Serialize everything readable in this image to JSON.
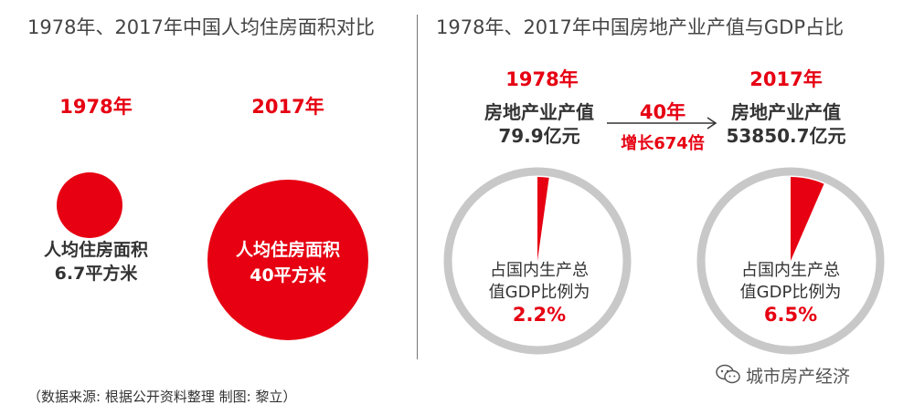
{
  "left_panel": {
    "title": "1978年、2017年中国人均住房面积对比",
    "items": [
      {
        "year": "1978年",
        "label_line1": "人均住房面积",
        "label_line2": "6.7平方米"
      },
      {
        "year": "2017年",
        "label_line1": "人均住房面积",
        "label_line2": "40平方米"
      }
    ]
  },
  "right_panel": {
    "title": "1978年、2017年中国房地产业产值与GDP占比",
    "items": [
      {
        "year": "1978年",
        "label_line1": "房地产业产值",
        "label_line2": "79.9亿元",
        "share_line1": "占国内生产总",
        "share_line2": "值GDP比例为",
        "share_value": "2.2%"
      },
      {
        "year": "2017年",
        "label_line1": "房地产业产值",
        "label_line2": "53850.7亿元",
        "share_line1": "占国内生产总",
        "share_line2": "值GDP比例为",
        "share_value": "6.5%"
      }
    ],
    "arrow_top": "40年",
    "arrow_bottom": "增长674倍"
  },
  "source_note": "（数据来源: 根据公开资料整理   制图: 黎立）",
  "watermark": {
    "text": "城市房产经济",
    "icon": "wechat-icon"
  },
  "colors": {
    "accent": "#e60012",
    "ring": "#c8c8c8",
    "text": "#333333"
  },
  "chart_data": [
    {
      "type": "bubble",
      "title": "1978年、2017年中国人均住房面积对比",
      "categories": [
        "1978年",
        "2017年"
      ],
      "values": [
        6.7,
        40
      ],
      "unit": "平方米"
    },
    {
      "type": "pie",
      "title": "1978年、2017年中国房地产业产值与GDP占比",
      "categories": [
        "1978年",
        "2017年"
      ],
      "output_values": [
        79.9,
        53850.7
      ],
      "output_unit": "亿元",
      "gdp_share_percent": [
        2.2,
        6.5
      ]
    }
  ]
}
